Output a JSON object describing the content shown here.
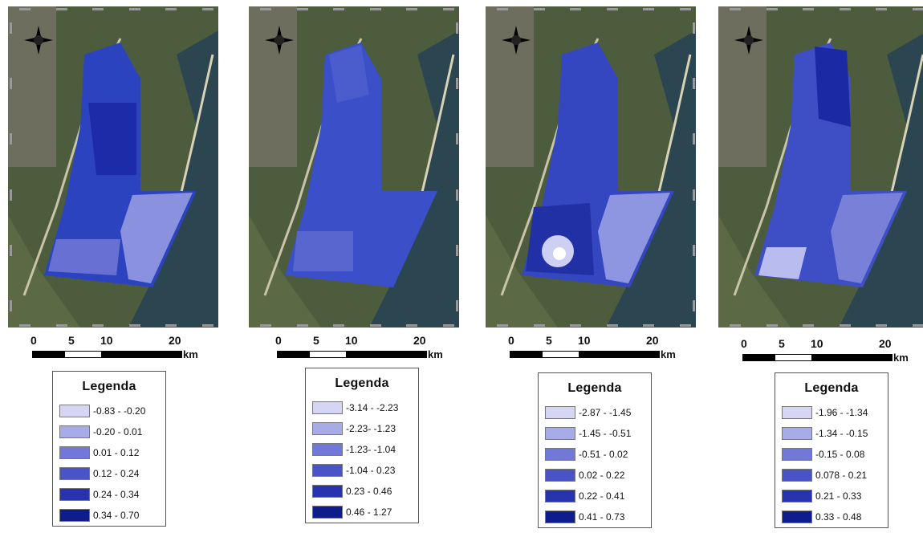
{
  "scalebar": {
    "ticks": [
      "0",
      "5",
      "10",
      "20"
    ],
    "unit": "km"
  },
  "compass": {
    "n": "N",
    "s": "S",
    "e": "E",
    "w": "W"
  },
  "colors": {
    "class_1": "#d4d6f4",
    "class_2": "#a7abe8",
    "class_3": "#7178d8",
    "class_4": "#4a54c6",
    "class_5": "#2833ae",
    "class_6": "#0f1c8c"
  },
  "panels": [
    {
      "legend": {
        "title": "Legenda",
        "items": [
          "-0.83 - -0.20",
          "-0.20 - 0.01",
          "0.01 - 0.12",
          "0.12 - 0.24",
          "0.24 - 0.34",
          "0.34 - 0.70"
        ]
      }
    },
    {
      "legend": {
        "title": "Legenda",
        "items": [
          "-3.14 - -2.23",
          "-2.23- -1.23",
          "-1.23- -1.04",
          "-1.04 - 0.23",
          "0.23 - 0.46",
          "0.46 - 1.27"
        ]
      }
    },
    {
      "legend": {
        "title": "Legenda",
        "items": [
          "-2.87 - -1.45",
          "-1.45 - -0.51",
          "-0.51 - 0.02",
          "0.02 - 0.22",
          "0.22 - 0.41",
          "0.41 - 0.73"
        ]
      }
    },
    {
      "legend": {
        "title": "Legenda",
        "items": [
          "-1.96 - -1.34",
          "-1.34 - -0.15",
          "-0.15 - 0.08",
          "0.078 - 0.21",
          "0.21 - 0.33",
          "0.33 - 0.48"
        ]
      }
    }
  ]
}
